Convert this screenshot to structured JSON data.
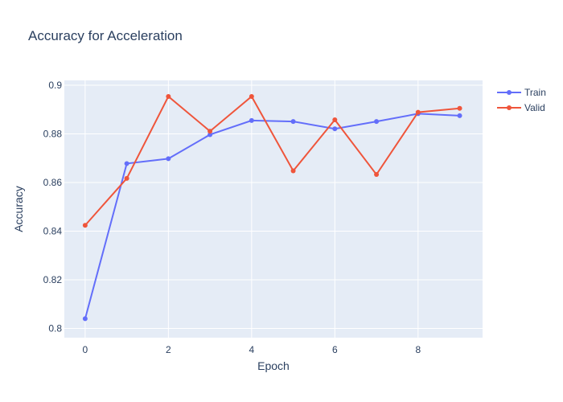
{
  "chart_data": {
    "type": "line",
    "title": "Accuracy for Acceleration",
    "xlabel": "Epoch",
    "ylabel": "Accuracy",
    "x": [
      0,
      1,
      2,
      3,
      4,
      5,
      6,
      7,
      8,
      9
    ],
    "series": [
      {
        "name": "Train",
        "color": "#636efa",
        "values": [
          0.804,
          0.8678,
          0.8698,
          0.8797,
          0.8855,
          0.8851,
          0.8821,
          0.8851,
          0.8883,
          0.8875
        ]
      },
      {
        "name": "Valid",
        "color": "#ef553b",
        "values": [
          0.8424,
          0.8617,
          0.8954,
          0.8811,
          0.8954,
          0.8648,
          0.8858,
          0.8633,
          0.8889,
          0.8905
        ]
      }
    ],
    "xlim": [
      -0.5,
      9.55
    ],
    "ylim": [
      0.7962,
      0.902
    ],
    "xticks": [
      0,
      2,
      4,
      6,
      8
    ],
    "xtick_labels": [
      "0",
      "2",
      "4",
      "6",
      "8"
    ],
    "yticks": [
      0.8,
      0.82,
      0.84,
      0.86,
      0.88,
      0.9
    ],
    "ytick_labels": [
      "0.8",
      "0.82",
      "0.84",
      "0.86",
      "0.88",
      "0.9"
    ],
    "grid": true,
    "plot_background": "#e5ecf6",
    "legend_position": "top-right"
  }
}
